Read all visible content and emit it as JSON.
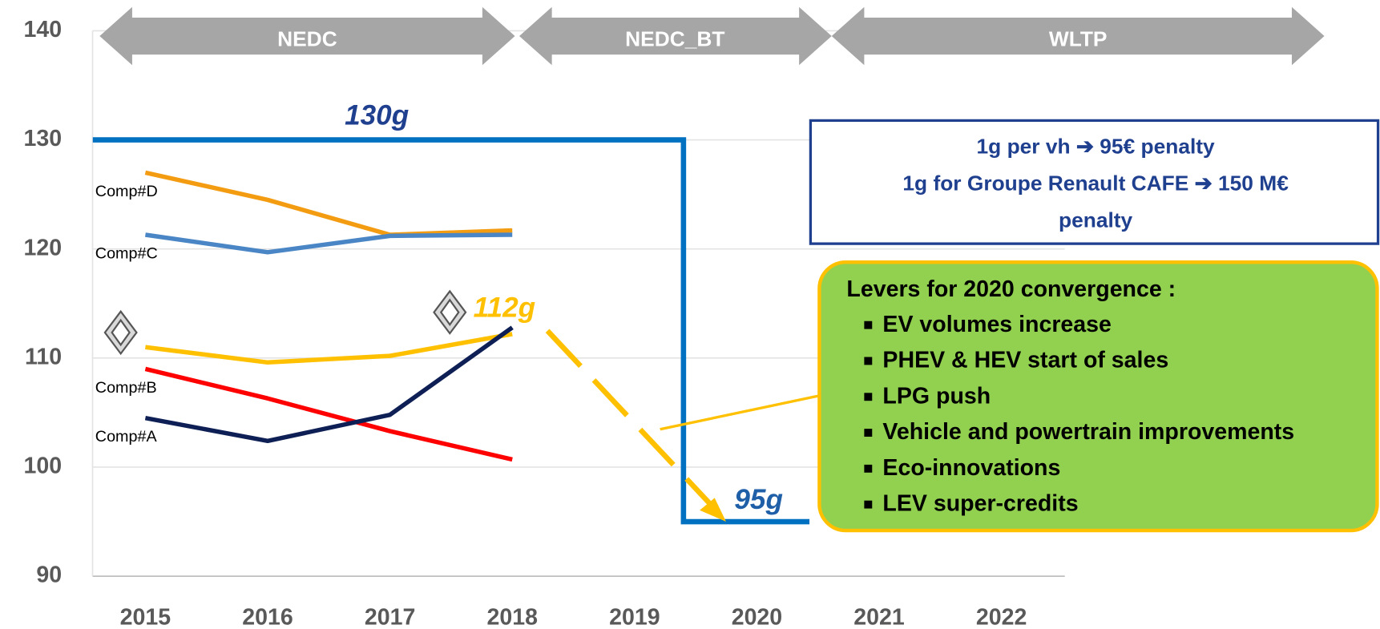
{
  "chart_data": {
    "type": "line",
    "categories": [
      "2015",
      "2016",
      "2017",
      "2018",
      "2019",
      "2020",
      "2021",
      "2022"
    ],
    "ylim": [
      90,
      140
    ],
    "yticks": [
      90,
      100,
      110,
      120,
      130,
      140
    ],
    "grid": true,
    "series": [
      {
        "name": "Comp#D",
        "color": "#f39c12",
        "values": [
          127,
          124.5,
          121.3,
          121.7,
          null,
          null,
          null,
          null
        ]
      },
      {
        "name": "Comp#C",
        "color": "#4a86c5",
        "values": [
          121.3,
          119.7,
          121.2,
          121.3,
          null,
          null,
          null,
          null
        ]
      },
      {
        "color": "#ffc000",
        "values": [
          111,
          109.6,
          110.2,
          112.2,
          null,
          null,
          null,
          null
        ]
      },
      {
        "name": "Comp#B",
        "color": "#ff0000",
        "values": [
          109,
          106.3,
          103.3,
          100.7,
          null,
          null,
          null,
          null
        ]
      },
      {
        "name": "Comp#A",
        "color": "#0d1f54",
        "values": [
          104.5,
          102.4,
          104.8,
          112.8,
          null,
          null,
          null,
          null
        ]
      }
    ],
    "target": {
      "color": "#0070c0",
      "x": [
        2014.57,
        2019.4,
        2019.4,
        2020.43
      ],
      "values": [
        130,
        130,
        95,
        95
      ]
    },
    "annotations": [
      "130g",
      "112g",
      "95g"
    ],
    "bands": [
      "NEDC",
      "NEDC_BT",
      "WLTP"
    ],
    "penalty_box": [
      "1g per vh ➔ 95€ penalty",
      "1g for Groupe Renault CAFE ➔ 150 M€",
      "penalty"
    ],
    "levers_box": {
      "title": "Levers for 2020 convergence :",
      "items": [
        "EV volumes increase",
        "PHEV & HEV start of sales",
        "LPG push",
        "Vehicle and powertrain improvements",
        "Eco-innovations",
        "LEV super-credits"
      ]
    }
  }
}
